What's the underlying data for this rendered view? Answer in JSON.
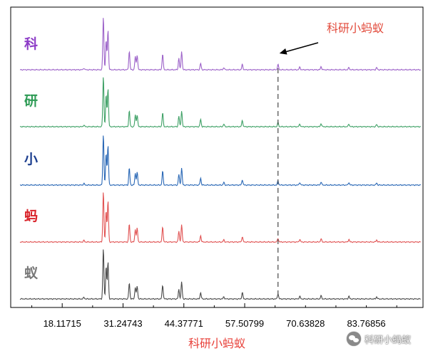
{
  "chart_data": {
    "type": "line",
    "title": "",
    "xlabel": "科研小蚂蚁",
    "ylabel": "",
    "xlim": [
      7.0,
      96.0
    ],
    "x_ticks": [
      18.11715,
      31.24743,
      44.37771,
      57.50799,
      70.63828,
      83.76856
    ],
    "x_tick_labels": [
      "18.11715",
      "31.24743",
      "44.37771",
      "57.50799",
      "70.63828",
      "83.76856"
    ],
    "grid": false,
    "legend": "none",
    "dashed_line_x": 64.7,
    "annotation": {
      "text": "科研小蚂蚁",
      "points_to_x": 64.7
    },
    "baseline_noise": 0.01,
    "series": [
      {
        "name": "科",
        "color": "#9d63c9",
        "label_color": "#8d3cc7",
        "peaks": [
          [
            22.8,
            0.03
          ],
          [
            27.0,
            1.0
          ],
          [
            27.6,
            0.55
          ],
          [
            28.0,
            0.75
          ],
          [
            32.6,
            0.35
          ],
          [
            33.9,
            0.25
          ],
          [
            34.3,
            0.28
          ],
          [
            39.8,
            0.3
          ],
          [
            43.3,
            0.22
          ],
          [
            43.9,
            0.35
          ],
          [
            48.0,
            0.12
          ],
          [
            53.0,
            0.04
          ],
          [
            57.0,
            0.1
          ],
          [
            64.7,
            0.1
          ],
          [
            69.4,
            0.05
          ],
          [
            74.0,
            0.06
          ],
          [
            80.0,
            0.04
          ],
          [
            86.0,
            0.04
          ]
        ]
      },
      {
        "name": "研",
        "color": "#3fa166",
        "label_color": "#2e9b55",
        "peaks": [
          [
            22.8,
            0.03
          ],
          [
            27.0,
            0.95
          ],
          [
            27.6,
            0.6
          ],
          [
            28.0,
            0.72
          ],
          [
            32.6,
            0.3
          ],
          [
            33.9,
            0.22
          ],
          [
            34.3,
            0.22
          ],
          [
            39.8,
            0.26
          ],
          [
            43.3,
            0.2
          ],
          [
            43.9,
            0.3
          ],
          [
            48.0,
            0.14
          ],
          [
            53.0,
            0.05
          ],
          [
            57.0,
            0.12
          ],
          [
            64.7,
            0.08
          ],
          [
            69.4,
            0.05
          ],
          [
            74.0,
            0.06
          ],
          [
            80.0,
            0.05
          ],
          [
            86.0,
            0.04
          ]
        ]
      },
      {
        "name": "小",
        "color": "#2a68b6",
        "label_color": "#1d3f8f",
        "peaks": [
          [
            22.8,
            0.03
          ],
          [
            27.0,
            0.95
          ],
          [
            27.6,
            0.6
          ],
          [
            28.0,
            0.75
          ],
          [
            32.6,
            0.32
          ],
          [
            33.9,
            0.22
          ],
          [
            34.3,
            0.24
          ],
          [
            39.8,
            0.26
          ],
          [
            43.3,
            0.2
          ],
          [
            43.9,
            0.32
          ],
          [
            48.0,
            0.13
          ],
          [
            53.0,
            0.05
          ],
          [
            57.0,
            0.1
          ],
          [
            64.7,
            0.08
          ],
          [
            69.4,
            0.05
          ],
          [
            74.0,
            0.06
          ],
          [
            80.0,
            0.05
          ],
          [
            86.0,
            0.04
          ]
        ]
      },
      {
        "name": "蚂",
        "color": "#e15454",
        "label_color": "#d9232a",
        "peaks": [
          [
            22.8,
            0.03
          ],
          [
            27.0,
            0.95
          ],
          [
            27.6,
            0.6
          ],
          [
            28.0,
            0.78
          ],
          [
            32.6,
            0.34
          ],
          [
            33.9,
            0.24
          ],
          [
            34.3,
            0.26
          ],
          [
            39.8,
            0.28
          ],
          [
            43.3,
            0.2
          ],
          [
            43.9,
            0.32
          ],
          [
            48.0,
            0.12
          ],
          [
            53.0,
            0.04
          ],
          [
            57.0,
            0.1
          ],
          [
            64.7,
            0.07
          ],
          [
            69.4,
            0.05
          ],
          [
            74.0,
            0.06
          ],
          [
            80.0,
            0.05
          ],
          [
            86.0,
            0.04
          ]
        ]
      },
      {
        "name": "蚁",
        "color": "#4a4a4a",
        "label_color": "#777777",
        "peaks": [
          [
            22.8,
            0.03
          ],
          [
            27.0,
            0.95
          ],
          [
            27.6,
            0.62
          ],
          [
            28.0,
            0.7
          ],
          [
            32.6,
            0.3
          ],
          [
            33.9,
            0.22
          ],
          [
            34.3,
            0.24
          ],
          [
            39.8,
            0.26
          ],
          [
            43.3,
            0.18
          ],
          [
            43.9,
            0.32
          ],
          [
            48.0,
            0.12
          ],
          [
            53.0,
            0.04
          ],
          [
            57.0,
            0.12
          ],
          [
            64.7,
            0.1
          ],
          [
            69.4,
            0.05
          ],
          [
            74.0,
            0.06
          ],
          [
            80.0,
            0.05
          ],
          [
            86.0,
            0.04
          ]
        ]
      }
    ]
  },
  "watermark": {
    "text": "科研小蚂蚁",
    "icon": "wechat-icon"
  }
}
